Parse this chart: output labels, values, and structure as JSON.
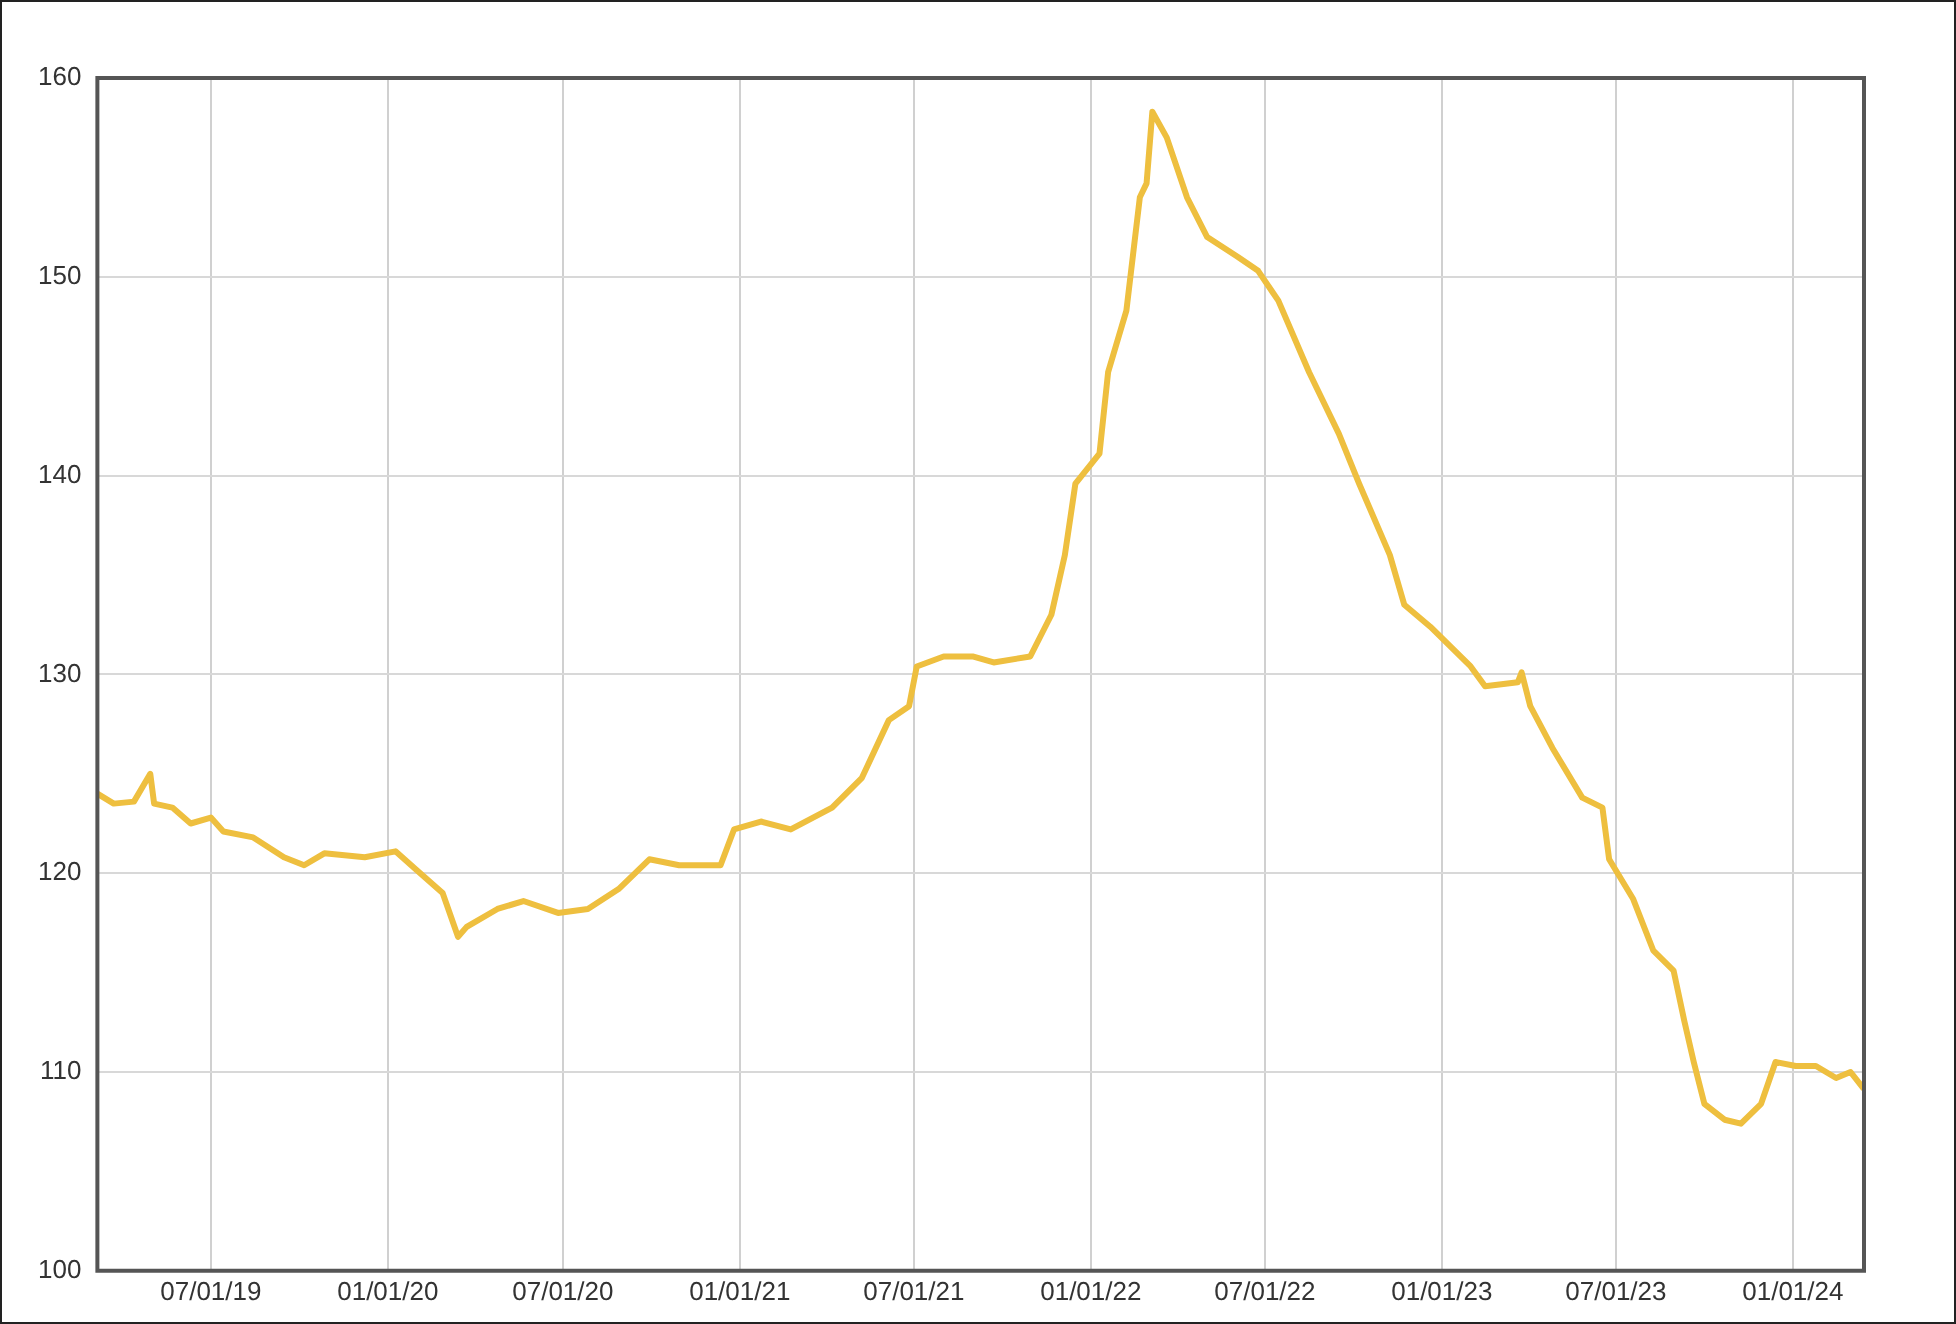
{
  "chart_data": {
    "type": "line",
    "x": [
      "2019-03-05",
      "2019-03-22",
      "2019-04-12",
      "2019-04-29",
      "2019-05-03",
      "2019-05-22",
      "2019-06-10",
      "2019-07-01",
      "2019-07-14",
      "2019-08-14",
      "2019-09-15",
      "2019-10-06",
      "2019-10-27",
      "2019-12-08",
      "2020-01-09",
      "2020-01-30",
      "2020-02-27",
      "2020-03-14",
      "2020-03-23",
      "2020-04-24",
      "2020-05-21",
      "2020-06-26",
      "2020-07-27",
      "2020-08-28",
      "2020-09-29",
      "2020-10-30",
      "2020-12-12",
      "2020-12-26",
      "2021-01-23",
      "2021-02-23",
      "2021-04-07",
      "2021-05-08",
      "2021-06-05",
      "2021-06-26",
      "2021-07-04",
      "2021-08-01",
      "2021-09-01",
      "2021-09-22",
      "2021-10-30",
      "2021-11-21",
      "2021-12-05",
      "2021-12-16",
      "2022-01-10",
      "2022-01-19",
      "2022-02-07",
      "2022-02-21",
      "2022-02-28",
      "2022-03-06",
      "2022-03-21",
      "2022-04-11",
      "2022-05-02",
      "2022-06-03",
      "2022-06-24",
      "2022-07-15",
      "2022-08-16",
      "2022-09-16",
      "2022-10-07",
      "2022-11-08",
      "2022-11-23",
      "2022-12-20",
      "2023-01-31",
      "2023-02-15",
      "2023-03-21",
      "2023-03-25",
      "2023-04-03",
      "2023-04-26",
      "2023-05-27",
      "2023-06-17",
      "2023-06-24",
      "2023-07-19",
      "2023-08-09",
      "2023-08-30",
      "2023-09-10",
      "2023-09-20",
      "2023-10-01",
      "2023-10-22",
      "2023-11-08",
      "2023-11-29",
      "2023-12-14",
      "2024-01-04",
      "2024-01-25",
      "2024-02-15",
      "2024-03-01",
      "2024-03-14"
    ],
    "series": [
      {
        "color": "#eebf3f",
        "values": [
          124.0,
          123.5,
          123.6,
          125.0,
          123.5,
          123.3,
          122.5,
          122.8,
          122.1,
          121.8,
          120.8,
          120.4,
          121.0,
          120.8,
          121.1,
          120.2,
          119.0,
          116.8,
          117.3,
          118.2,
          118.6,
          118.0,
          118.2,
          119.2,
          120.7,
          120.4,
          120.4,
          122.2,
          122.6,
          122.2,
          123.3,
          124.8,
          127.7,
          128.4,
          130.4,
          130.9,
          130.9,
          130.6,
          130.9,
          133.0,
          136.0,
          139.6,
          141.1,
          145.2,
          148.3,
          154.0,
          154.7,
          158.3,
          157.0,
          154.0,
          152.0,
          151.0,
          150.3,
          148.8,
          145.2,
          142.1,
          139.6,
          136.0,
          133.5,
          132.4,
          130.4,
          129.4,
          129.6,
          130.1,
          128.4,
          126.3,
          123.8,
          123.3,
          120.7,
          118.7,
          116.1,
          115.1,
          112.6,
          110.5,
          108.4,
          107.6,
          107.4,
          108.4,
          110.5,
          110.3,
          110.3,
          109.7,
          110.0,
          109.2
        ]
      }
    ],
    "xlim": [
      "2019-03-05",
      "2024-03-15"
    ],
    "xticks": [
      {
        "value": "2019-07-01",
        "label": "07/01/19"
      },
      {
        "value": "2020-01-01",
        "label": "01/01/20"
      },
      {
        "value": "2020-07-01",
        "label": "07/01/20"
      },
      {
        "value": "2021-01-01",
        "label": "01/01/21"
      },
      {
        "value": "2021-07-01",
        "label": "07/01/21"
      },
      {
        "value": "2022-01-01",
        "label": "01/01/22"
      },
      {
        "value": "2022-07-01",
        "label": "07/01/22"
      },
      {
        "value": "2023-01-01",
        "label": "01/01/23"
      },
      {
        "value": "2023-07-01",
        "label": "07/01/23"
      },
      {
        "value": "2024-01-01",
        "label": "01/01/24"
      }
    ],
    "ylim": [
      100,
      160
    ],
    "yticks": [
      100,
      110,
      120,
      130,
      140,
      150,
      160
    ],
    "grid": true,
    "legend": false,
    "marker": "none",
    "line_style": "solid"
  }
}
